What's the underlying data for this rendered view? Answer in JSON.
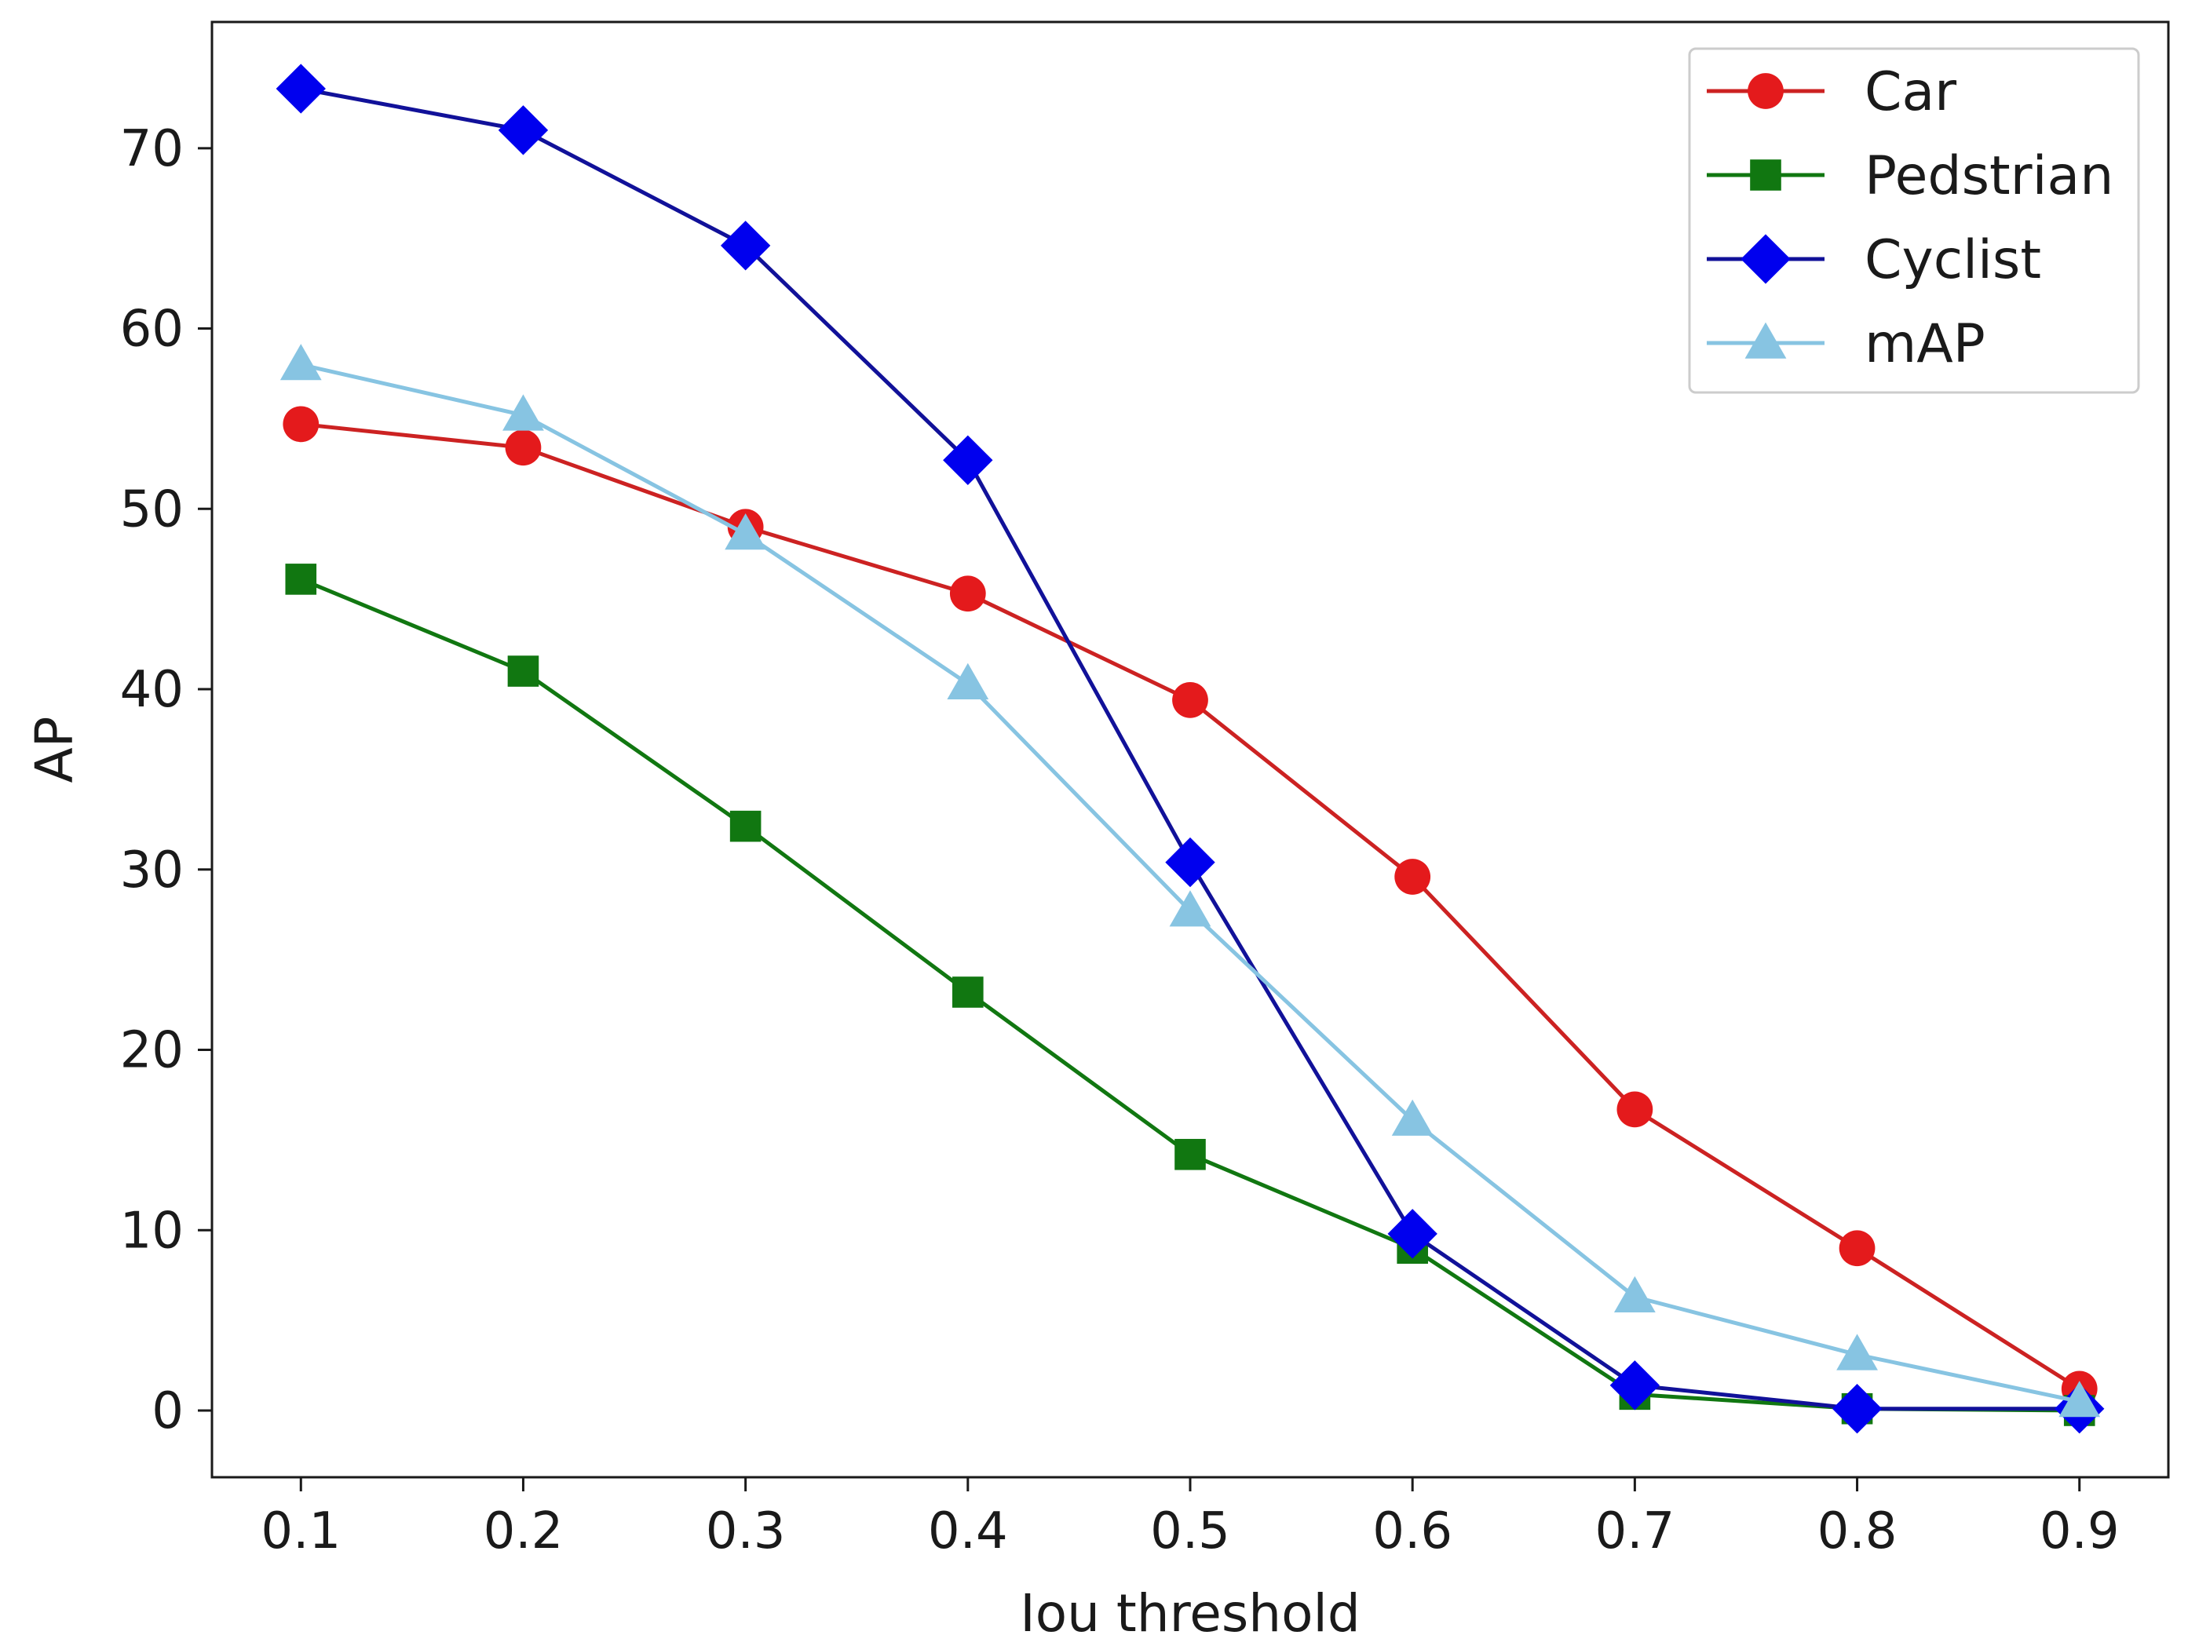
{
  "chart_data": {
    "type": "line",
    "title": "",
    "xlabel": "Iou threshold",
    "ylabel": "AP",
    "x": [
      0.1,
      0.2,
      0.3,
      0.4,
      0.5,
      0.6,
      0.7,
      0.8,
      0.9
    ],
    "x_tick_labels": [
      "0.1",
      "0.2",
      "0.3",
      "0.4",
      "0.5",
      "0.6",
      "0.7",
      "0.8",
      "0.9"
    ],
    "xlim": [
      0.06,
      0.94
    ],
    "y_ticks": [
      0,
      10,
      20,
      30,
      40,
      50,
      60,
      70
    ],
    "y_tick_labels": [
      "0",
      "10",
      "20",
      "30",
      "40",
      "50",
      "60",
      "70"
    ],
    "ylim": [
      -3.7,
      77.0
    ],
    "grid": false,
    "legend_position": "top-right",
    "series": [
      {
        "name": "Car",
        "color": "#e41a1c",
        "line_color": "#cc2222",
        "marker": "circle",
        "values": [
          54.7,
          53.4,
          49.0,
          45.3,
          39.4,
          29.6,
          16.7,
          9.0,
          1.2
        ]
      },
      {
        "name": "Pedstrian",
        "color": "#117711",
        "line_color": "#117711",
        "marker": "square",
        "values": [
          46.1,
          41.0,
          32.4,
          23.2,
          14.2,
          9.0,
          0.9,
          0.1,
          0.0
        ]
      },
      {
        "name": "Cyclist",
        "color": "#0000ee",
        "line_color": "#111199",
        "marker": "diamond",
        "values": [
          73.3,
          71.0,
          64.6,
          52.7,
          30.4,
          9.8,
          1.4,
          0.1,
          0.1
        ]
      },
      {
        "name": "mAP",
        "color": "#87c4e2",
        "line_color": "#87c4e2",
        "marker": "triangle",
        "values": [
          58.0,
          55.2,
          48.6,
          40.3,
          27.7,
          16.1,
          6.3,
          3.1,
          0.5
        ]
      }
    ]
  }
}
